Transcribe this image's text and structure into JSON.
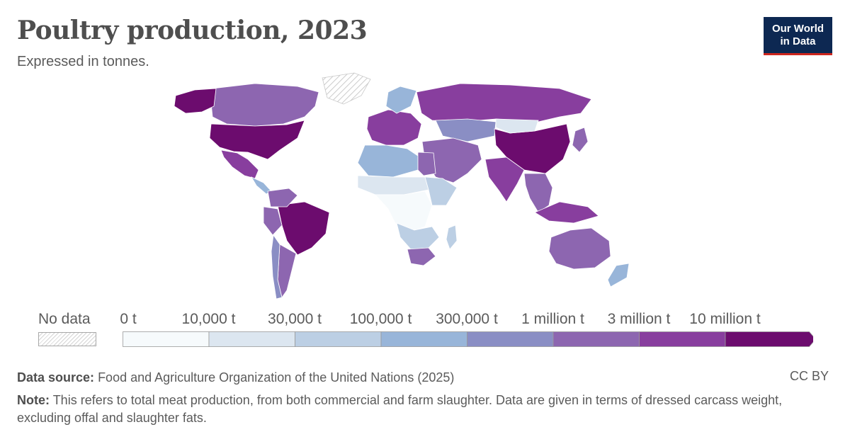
{
  "title": "Poultry production, 2023",
  "subtitle": "Expressed in tonnes.",
  "logo": {
    "line1": "Our World",
    "line2": "in Data"
  },
  "legend": {
    "no_data_label": "No data",
    "ticks": [
      "0 t",
      "10,000 t",
      "30,000 t",
      "100,000 t",
      "300,000 t",
      "1 million t",
      "3 million t",
      "10 million t"
    ],
    "bins": [
      {
        "from": "0 t",
        "to": "10,000 t",
        "color": "#f6fafc"
      },
      {
        "from": "10,000 t",
        "to": "30,000 t",
        "color": "#dce6f0"
      },
      {
        "from": "30,000 t",
        "to": "100,000 t",
        "color": "#bccfe4"
      },
      {
        "from": "100,000 t",
        "to": "300,000 t",
        "color": "#98b5d9"
      },
      {
        "from": "300,000 t",
        "to": "1 million t",
        "color": "#8a8ec4"
      },
      {
        "from": "1 million t",
        "to": "3 million t",
        "color": "#8d66b0"
      },
      {
        "from": "3 million t",
        "to": "10 million t",
        "color": "#883e9e"
      },
      {
        "from": "10 million t",
        "to": "",
        "color": "#6c0c6e"
      }
    ]
  },
  "footer": {
    "source_label": "Data source:",
    "source_text": "Food and Agriculture Organization of the United Nations (2025)",
    "note_label": "Note:",
    "note_text": "This refers to total meat production, from both commercial and farm slaughter. Data are given in terms of dressed carcass weight, excluding offal and slaughter fats.",
    "license": "CC BY"
  },
  "map_regions": [
    {
      "name": "Canada",
      "color": "#8d66b0"
    },
    {
      "name": "Alaska",
      "color": "#6c0c6e"
    },
    {
      "name": "Greenland",
      "color": "nodata"
    },
    {
      "name": "United States",
      "color": "#6c0c6e"
    },
    {
      "name": "Mexico",
      "color": "#883e9e"
    },
    {
      "name": "Central America",
      "color": "#98b5d9"
    },
    {
      "name": "Brazil",
      "color": "#6c0c6e"
    },
    {
      "name": "Argentina",
      "color": "#8d66b0"
    },
    {
      "name": "Colombia-Venezuela",
      "color": "#8d66b0"
    },
    {
      "name": "Peru",
      "color": "#8d66b0"
    },
    {
      "name": "Chile",
      "color": "#8a8ec4"
    },
    {
      "name": "Europe",
      "color": "#883e9e"
    },
    {
      "name": "Scandinavia",
      "color": "#98b5d9"
    },
    {
      "name": "Russia",
      "color": "#883e9e"
    },
    {
      "name": "Kazakhstan",
      "color": "#8a8ec4"
    },
    {
      "name": "China",
      "color": "#6c0c6e"
    },
    {
      "name": "Mongolia",
      "color": "#dce6f0"
    },
    {
      "name": "India",
      "color": "#883e9e"
    },
    {
      "name": "Middle East",
      "color": "#8d66b0"
    },
    {
      "name": "North Africa",
      "color": "#98b5d9"
    },
    {
      "name": "Egypt",
      "color": "#8d66b0"
    },
    {
      "name": "Sahel",
      "color": "#dce6f0"
    },
    {
      "name": "Central Africa",
      "color": "#f6fafc"
    },
    {
      "name": "East Africa",
      "color": "#bccfe4"
    },
    {
      "name": "Southern Africa",
      "color": "#bccfe4"
    },
    {
      "name": "South Africa",
      "color": "#8d66b0"
    },
    {
      "name": "Madagascar",
      "color": "#bccfe4"
    },
    {
      "name": "Southeast Asia",
      "color": "#8d66b0"
    },
    {
      "name": "Indonesia",
      "color": "#883e9e"
    },
    {
      "name": "Japan",
      "color": "#8d66b0"
    },
    {
      "name": "Australia",
      "color": "#8d66b0"
    },
    {
      "name": "New Zealand",
      "color": "#98b5d9"
    }
  ]
}
